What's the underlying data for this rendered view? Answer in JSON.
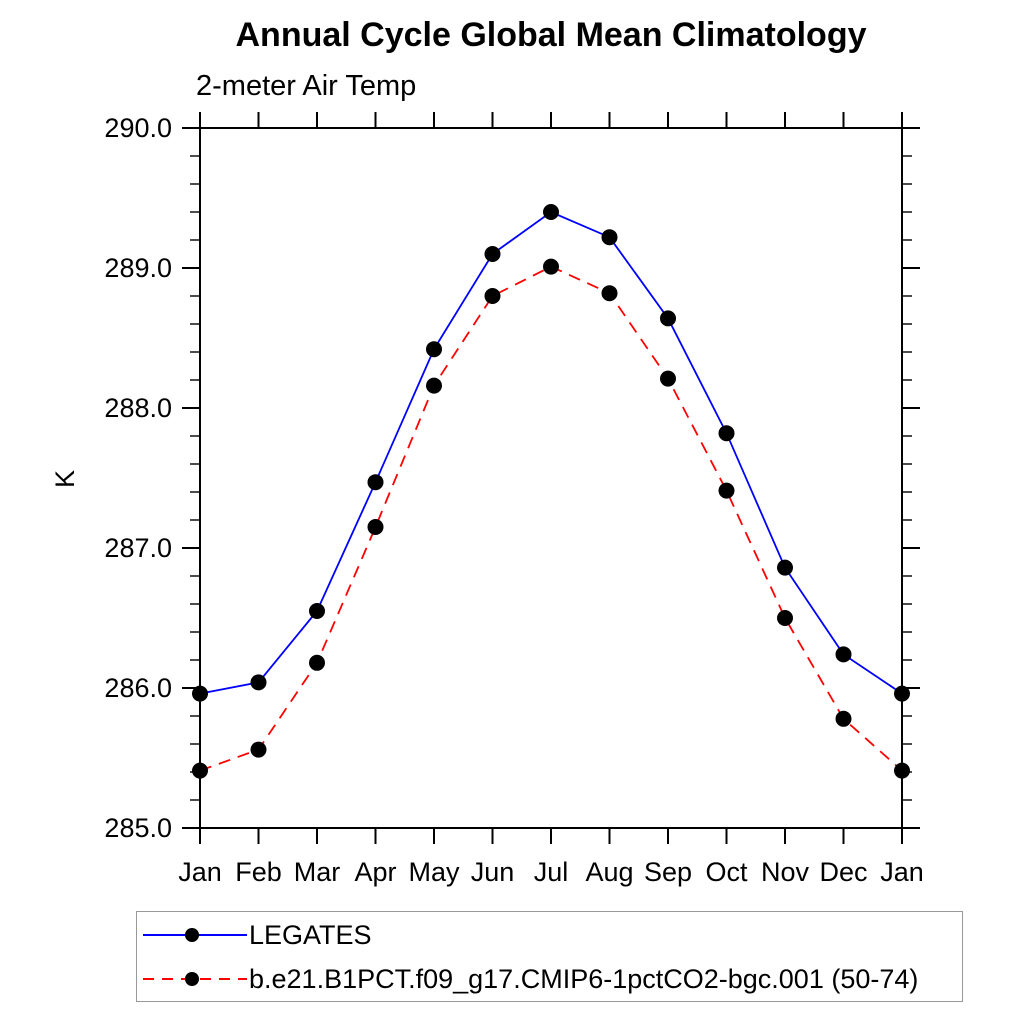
{
  "chart_data": {
    "type": "line",
    "title": "Annual Cycle Global Mean Climatology",
    "subtitle": "2-meter Air Temp",
    "ylabel": "K",
    "xlabel": "",
    "categories": [
      "Jan",
      "Feb",
      "Mar",
      "Apr",
      "May",
      "Jun",
      "Jul",
      "Aug",
      "Sep",
      "Oct",
      "Nov",
      "Dec",
      "Jan"
    ],
    "series": [
      {
        "name": "LEGATES",
        "color": "#0000ff",
        "line_style": "solid",
        "marker": "filled-circle",
        "marker_color": "#000000",
        "values": [
          285.96,
          286.04,
          286.55,
          287.47,
          288.42,
          289.1,
          289.4,
          289.22,
          288.64,
          287.82,
          286.86,
          286.24,
          285.96
        ]
      },
      {
        "name": "b.e21.B1PCT.f09_g17.CMIP6-1pctCO2-bgc.001 (50-74)",
        "color": "#ff0000",
        "line_style": "dashed",
        "marker": "filled-circle",
        "marker_color": "#000000",
        "values": [
          285.41,
          285.56,
          286.18,
          287.15,
          288.16,
          288.8,
          289.01,
          288.82,
          288.21,
          287.41,
          286.5,
          285.78,
          285.41
        ]
      }
    ],
    "ylim": [
      285.0,
      290.0
    ],
    "ytick_major": 1.0,
    "ytick_minor": 0.2,
    "ytick_label_format": "one_decimal",
    "grid": false,
    "legend_position": "bottom-left",
    "axis_color": "#000000"
  }
}
